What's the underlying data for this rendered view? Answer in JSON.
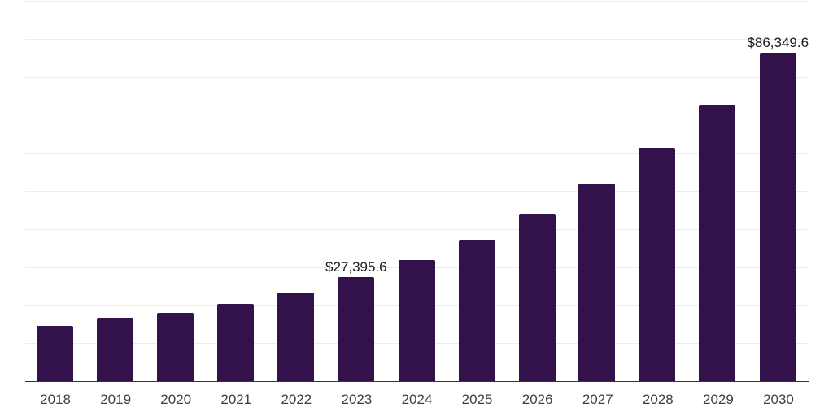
{
  "chart_data": {
    "type": "bar",
    "title": "",
    "xlabel": "",
    "ylabel": "",
    "categories": [
      "2018",
      "2019",
      "2020",
      "2021",
      "2022",
      "2023",
      "2024",
      "2025",
      "2026",
      "2027",
      "2028",
      "2029",
      "2030"
    ],
    "values": [
      14600,
      16600,
      17900,
      20250,
      23350,
      27395.6,
      31900,
      37250,
      44000,
      52000,
      61250,
      72700,
      86349.6
    ],
    "data_labels": {
      "2023": "$27,395.6",
      "2030": "$86,349.6"
    },
    "ylim": [
      0,
      100000
    ],
    "gridline_step": 10000,
    "grid": true,
    "legend_position": "none",
    "colors": {
      "bar": "#33124B",
      "gridline": "#ECECEC",
      "axis_line": "#333333",
      "tick_label": "#404040",
      "value_label": "#1A1A1A",
      "background": "#FFFFFF"
    }
  }
}
